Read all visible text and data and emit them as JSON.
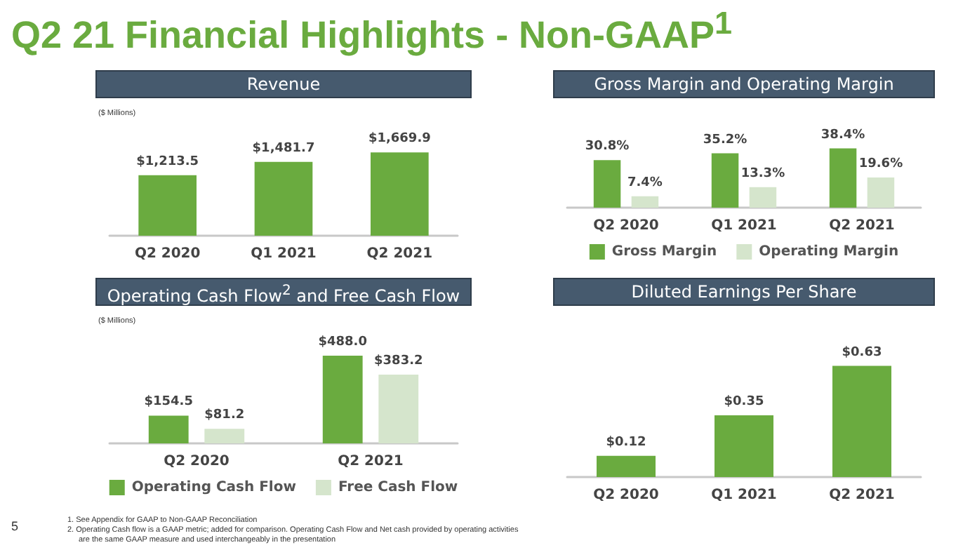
{
  "chart_data": [
    {
      "type": "bar",
      "title": "Q2 21 Financial Highlights - Non-GAAP$^{1}$",
      "subtitle": "Revenue",
      "ylabel": "($ Millions)",
      "categories": [
        "Q2 2020",
        "Q1 2021",
        "Q2 2021"
      ],
      "legend": false,
      "series": [
        {
          "color": "#6aab3f",
          "values": [
            1213.5,
            1481.7,
            1669.9
          ],
          "value_labels": [
            "$1,213.5",
            "$1,481.7",
            "$1,669.9"
          ]
        }
      ]
    },
    {
      "type": "bar",
      "title": "Gross Margin and Operating Margin",
      "categories": [
        "Q2 2020",
        "Q1 2021",
        "Q2 2021"
      ],
      "legend": "bottom",
      "series": [
        {
          "name": "Gross Margin",
          "color": "#6aab3f",
          "values": [
            30.8,
            35.2,
            38.4
          ],
          "value_labels": [
            "30.8%",
            "35.2%",
            "38.4%"
          ]
        },
        {
          "name": "Operating Margin",
          "color": "#d5e5cc",
          "values": [
            7.4,
            13.3,
            19.6
          ],
          "value_labels": [
            "7.4%",
            "13.3%",
            "19.6%"
          ]
        }
      ]
    },
    {
      "type": "bar",
      "title": "Operating Cash Flow$^{2}$ and Free Cash Flow",
      "ylabel": "($ Millions)",
      "categories": [
        "Q2 2020",
        "Q2 2021"
      ],
      "legend": "bottom",
      "series": [
        {
          "name": "Operating Cash Flow",
          "color": "#6aab3f",
          "values": [
            154.5,
            488.0
          ],
          "value_labels": [
            "$154.5",
            "$488.0"
          ]
        },
        {
          "name": "Free Cash Flow",
          "color": "#d5e5cc",
          "values": [
            81.2,
            383.2
          ],
          "value_labels": [
            "$81.2",
            "$383.2"
          ]
        }
      ],
      "annotations": [
        "5",
        "1.  See Appendix for GAAP to Non-GAAP Reconciliation",
        "2.  Operating Cash flow is a GAAP metric; added for comparison. Operating Cash Flow and Net cash provided by operating activities are the same GAAP measure and used interchangeably in the presentation"
      ]
    },
    {
      "type": "bar",
      "title": "Diluted Earnings Per Share",
      "categories": [
        "Q2 2020",
        "Q1 2021",
        "Q2 2021"
      ],
      "legend": false,
      "series": [
        {
          "color": "#6aab3f",
          "values": [
            0.12,
            0.35,
            0.63
          ],
          "value_labels": [
            "$0.12",
            "$0.35",
            "$0.63"
          ]
        }
      ]
    }
  ]
}
